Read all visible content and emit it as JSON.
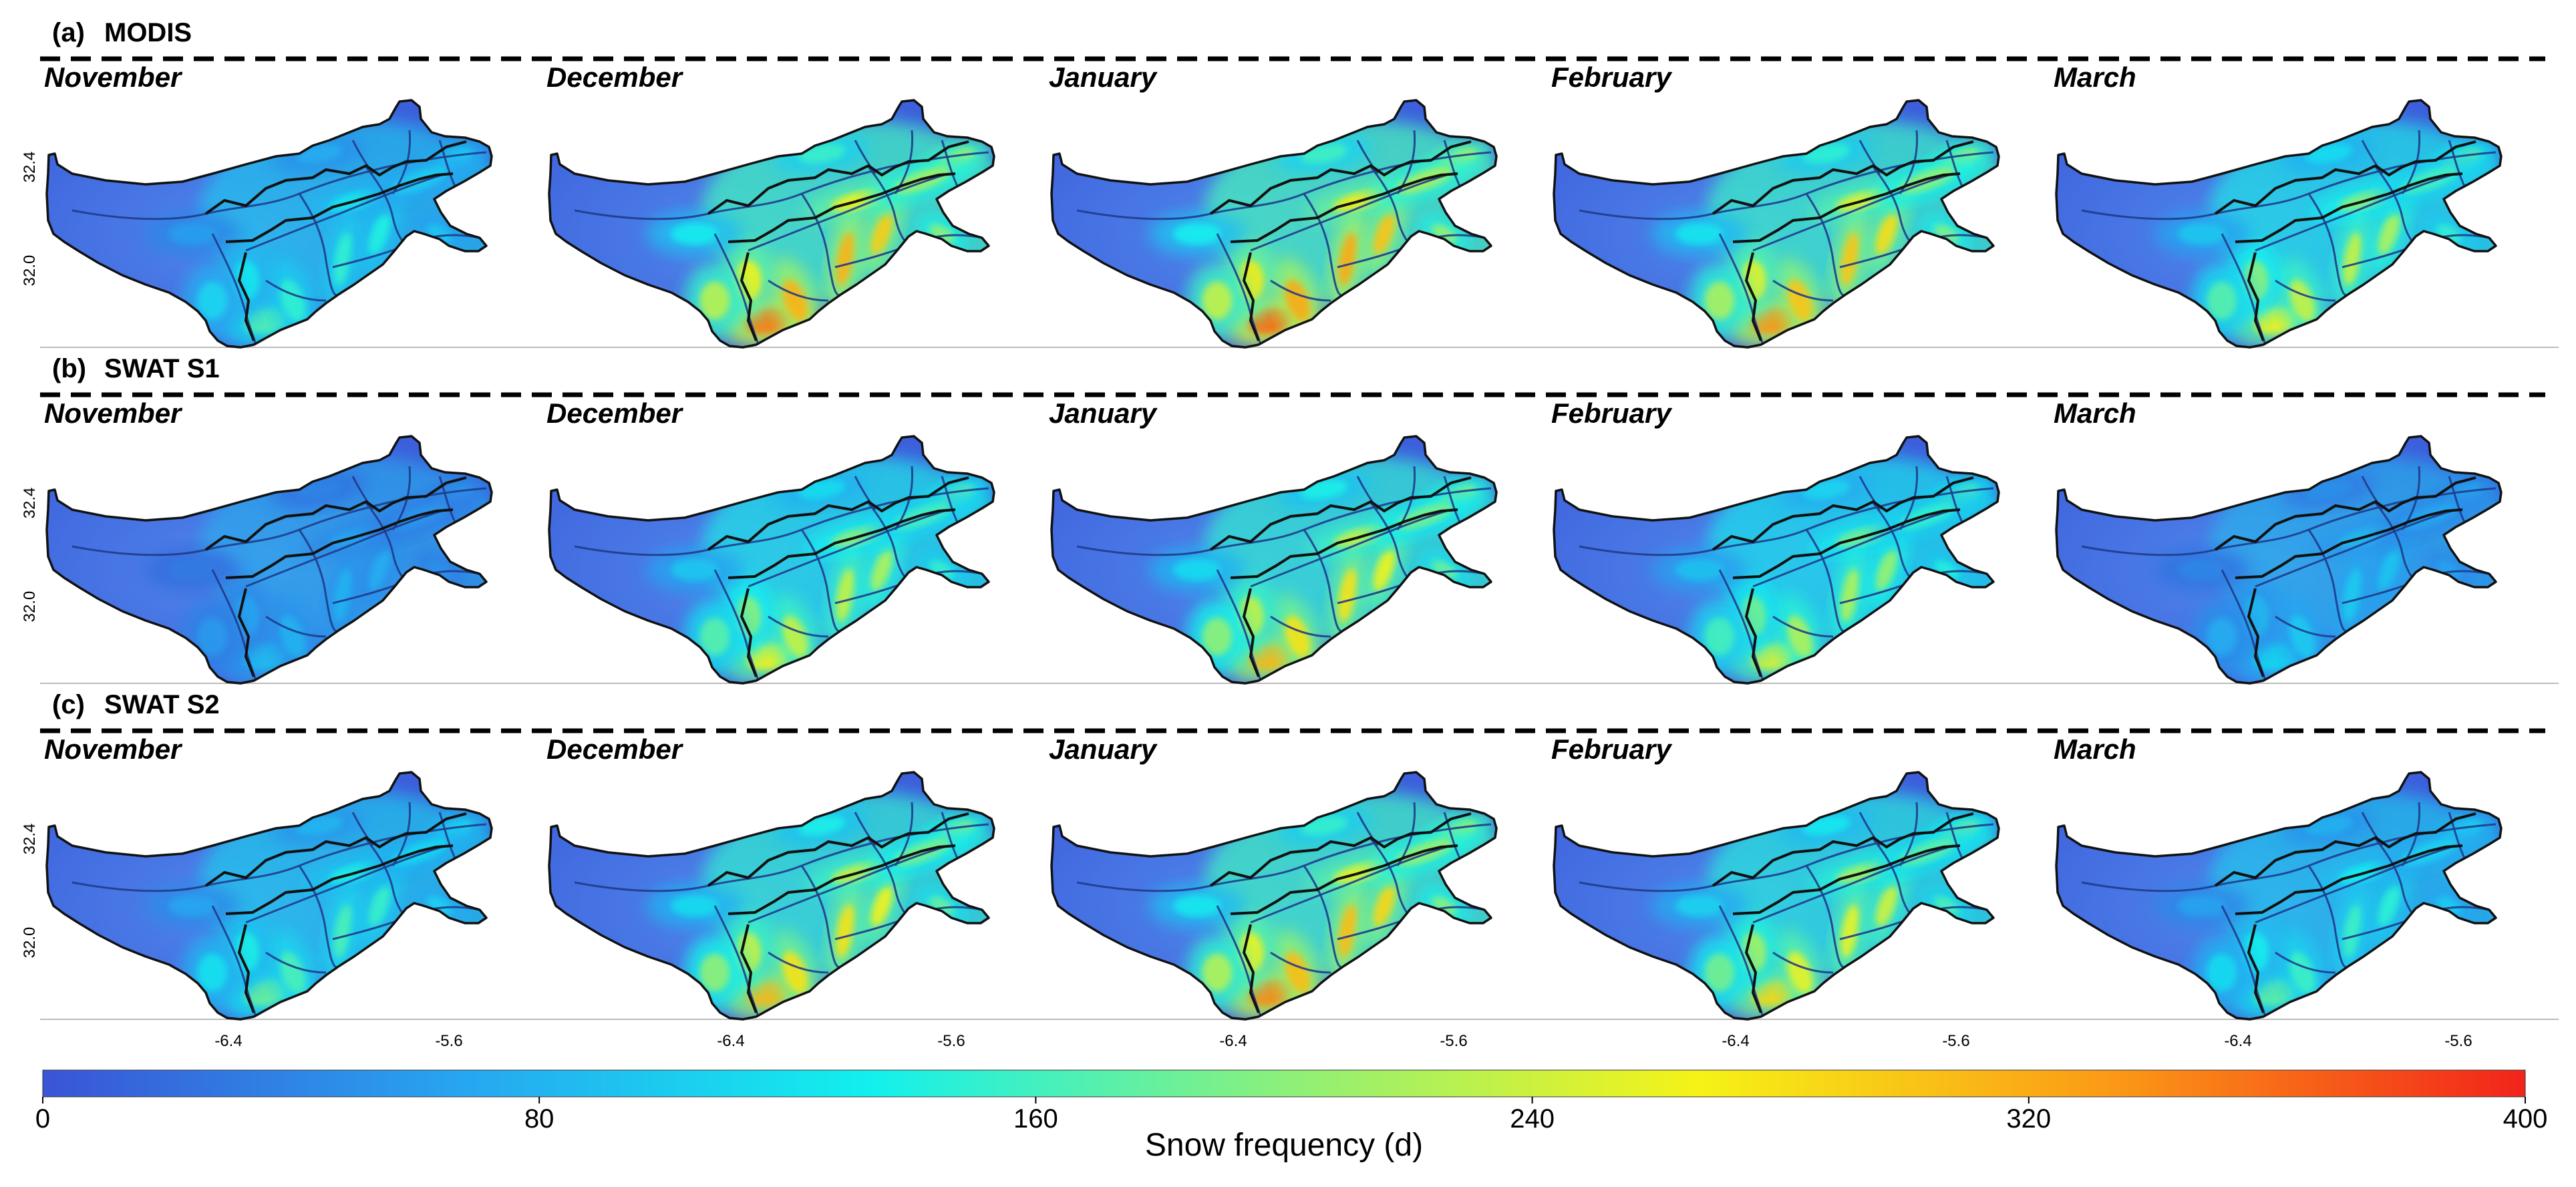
{
  "rows": [
    {
      "label": "(a)",
      "title": "MODIS",
      "panels": [
        {
          "month": "November",
          "intensity": 0.42
        },
        {
          "month": "December",
          "intensity": 0.88
        },
        {
          "month": "January",
          "intensity": 0.9
        },
        {
          "month": "February",
          "intensity": 0.84
        },
        {
          "month": "March",
          "intensity": 0.66
        }
      ]
    },
    {
      "label": "(b)",
      "title": "SWAT S1",
      "panels": [
        {
          "month": "November",
          "intensity": 0.22
        },
        {
          "month": "December",
          "intensity": 0.66
        },
        {
          "month": "January",
          "intensity": 0.78
        },
        {
          "month": "February",
          "intensity": 0.62
        },
        {
          "month": "March",
          "intensity": 0.28
        }
      ]
    },
    {
      "label": "(c)",
      "title": "SWAT S2",
      "panels": [
        {
          "month": "November",
          "intensity": 0.46
        },
        {
          "month": "December",
          "intensity": 0.78
        },
        {
          "month": "January",
          "intensity": 0.86
        },
        {
          "month": "February",
          "intensity": 0.72
        },
        {
          "month": "March",
          "intensity": 0.44
        }
      ]
    }
  ],
  "y_ticks": [
    "32.4",
    "32.0"
  ],
  "x_ticks": [
    "-6.4",
    "-5.6"
  ],
  "colorbar": {
    "label": "Snow frequency (d)",
    "min": 0,
    "max": 400,
    "ticks": [
      "0",
      "80",
      "160",
      "240",
      "320",
      "400"
    ],
    "colors": [
      "#3a54d6",
      "#27a5f0",
      "#12f0ee",
      "#8cf07a",
      "#f6f217",
      "#fb9a16",
      "#f2231b"
    ]
  }
}
